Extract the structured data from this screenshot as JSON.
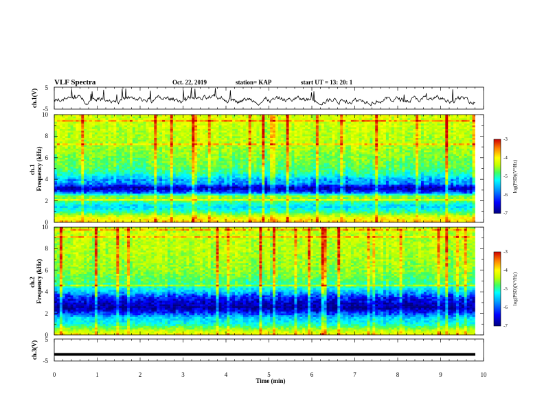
{
  "header": {
    "title": "VLF Spectra",
    "date": "Oct. 22, 2019",
    "station": "station= KAP",
    "start": "start  UT  =   13: 20: 1"
  },
  "colors": {
    "spectrum": [
      "#00007f",
      "#0000ff",
      "#00a0ff",
      "#00ffff",
      "#40ff60",
      "#c0ff00",
      "#ffff00",
      "#ff8000",
      "#d00000"
    ],
    "trace": "#000000",
    "frame": "#000000"
  },
  "chart_data": [
    {
      "type": "line",
      "name": "ch1-waveform",
      "ylabel": "ch.1(V)",
      "ylim": [
        -5,
        5
      ],
      "yticks": [
        "5",
        "-5"
      ],
      "xlim": [
        0,
        10
      ],
      "description_level": "noisy waveform roughly between -3 and +2 V"
    },
    {
      "type": "heatmap",
      "name": "ch1-spectrogram",
      "ylabel": "ch.1 Frequency (kHz)",
      "ylim": [
        0,
        10
      ],
      "yticks": [
        "0",
        "2",
        "4",
        "6",
        "8",
        "10"
      ],
      "xlim": [
        0,
        9.8
      ],
      "colorbar": {
        "label": "log(PSD)(V²/Hz)",
        "range": [
          -7,
          -3
        ],
        "ticks": [
          "-3",
          "-4",
          "-5",
          "-6",
          "-7"
        ]
      },
      "log_psd_profile": [
        {
          "f": 0.0,
          "v": -3.8
        },
        {
          "f": 0.5,
          "v": -4.2
        },
        {
          "f": 1.0,
          "v": -5.3
        },
        {
          "f": 1.5,
          "v": -5.7
        },
        {
          "f": 2.0,
          "v": -5.0
        },
        {
          "f": 2.4,
          "v": -4.7
        },
        {
          "f": 2.8,
          "v": -6.4
        },
        {
          "f": 3.2,
          "v": -6.8
        },
        {
          "f": 3.6,
          "v": -6.0
        },
        {
          "f": 4.0,
          "v": -5.9
        },
        {
          "f": 4.5,
          "v": -5.3
        },
        {
          "f": 5.0,
          "v": -5.0
        },
        {
          "f": 6.0,
          "v": -4.8
        },
        {
          "f": 7.0,
          "v": -4.6
        },
        {
          "f": 8.0,
          "v": -4.5
        },
        {
          "f": 9.0,
          "v": -4.4
        },
        {
          "f": 10.0,
          "v": -4.3
        }
      ]
    },
    {
      "type": "heatmap",
      "name": "ch2-spectrogram",
      "ylabel": "ch.2 Frequency (kHz)",
      "ylim": [
        0,
        10
      ],
      "yticks": [
        "0",
        "2",
        "4",
        "6",
        "8",
        "10"
      ],
      "xlim": [
        0,
        9.8
      ],
      "colorbar": {
        "label": "log(PSD)(V²/Hz)",
        "range": [
          -7,
          -3
        ],
        "ticks": [
          "-3",
          "-4",
          "-5",
          "-6",
          "-7"
        ]
      },
      "log_psd_profile": [
        {
          "f": 0.0,
          "v": -4.0
        },
        {
          "f": 0.5,
          "v": -4.6
        },
        {
          "f": 1.0,
          "v": -5.4
        },
        {
          "f": 1.6,
          "v": -5.8
        },
        {
          "f": 2.0,
          "v": -6.3
        },
        {
          "f": 2.5,
          "v": -6.9
        },
        {
          "f": 3.0,
          "v": -6.7
        },
        {
          "f": 3.5,
          "v": -6.4
        },
        {
          "f": 4.0,
          "v": -5.8
        },
        {
          "f": 4.5,
          "v": -5.3
        },
        {
          "f": 5.0,
          "v": -5.0
        },
        {
          "f": 6.0,
          "v": -4.7
        },
        {
          "f": 7.0,
          "v": -4.6
        },
        {
          "f": 8.0,
          "v": -4.5
        },
        {
          "f": 9.0,
          "v": -4.5
        },
        {
          "f": 10.0,
          "v": -4.4
        }
      ]
    },
    {
      "type": "line",
      "name": "ch3-waveform",
      "ylabel": "ch.3(V)",
      "ylim": [
        -5,
        5
      ],
      "yticks": [
        "5",
        "-5"
      ],
      "xlim": [
        0,
        10
      ],
      "constant_value": -2,
      "xlabel": "Time  (min)",
      "xticks": [
        "0",
        "1",
        "2",
        "3",
        "4",
        "5",
        "6",
        "7",
        "8",
        "9",
        "10"
      ]
    }
  ]
}
